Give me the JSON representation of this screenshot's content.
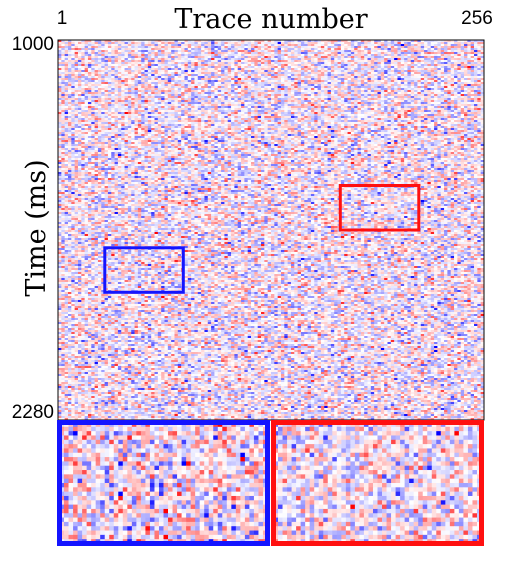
{
  "chart_data": {
    "type": "heatmap",
    "title": "",
    "xlabel": "Trace number",
    "ylabel": "Time (ms)",
    "x_tick_labels": {
      "start": "1",
      "end": "256"
    },
    "y_tick_labels": {
      "start": "1000",
      "end": "2280"
    },
    "xlim": [
      1,
      256
    ],
    "ylim": [
      1000,
      2280
    ],
    "colormap": [
      "#0000ff",
      "#ffffff",
      "#ff0000"
    ],
    "noise_seed": 12345,
    "main_grid": {
      "cols": 128,
      "rows": 190
    },
    "zoom_grid": {
      "cols": 46,
      "rows": 28
    },
    "highlight_boxes": [
      {
        "name": "blue-box",
        "color": "#1414ff",
        "trace_range": [
          29,
          76
        ],
        "time_range": [
          1700,
          1850
        ]
      },
      {
        "name": "red-box",
        "color": "#ff1010",
        "trace_range": [
          170,
          217
        ],
        "time_range": [
          1490,
          1640
        ]
      }
    ],
    "zoom_panels": [
      {
        "name": "blue-zoom",
        "color": "#1414ff",
        "source": "blue-box"
      },
      {
        "name": "red-zoom",
        "color": "#ff1010",
        "source": "red-box"
      }
    ]
  }
}
